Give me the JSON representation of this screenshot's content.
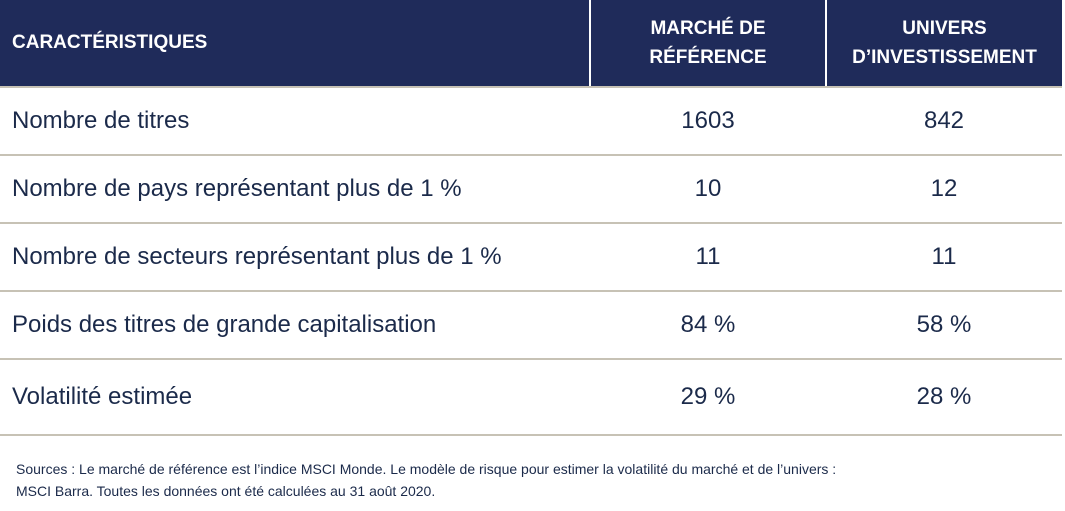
{
  "table": {
    "headers": {
      "col1": "CARACTÉRISTIQUES",
      "col2_line1": "MARCHÉ DE",
      "col2_line2": "RÉFÉRENCE",
      "col3_line1": "UNIVERS",
      "col3_line2": "D’INVESTISSEMENT"
    },
    "rows": [
      {
        "label": "Nombre de titres",
        "reference": "1603",
        "univers": "842"
      },
      {
        "label": "Nombre de pays représentant plus de 1 %",
        "reference": "10",
        "univers": "12"
      },
      {
        "label": "Nombre de secteurs représentant plus de 1 %",
        "reference": "11",
        "univers": "11"
      },
      {
        "label": "Poids des titres de grande capitalisation",
        "reference": "84 %",
        "univers": "58 %"
      },
      {
        "label": "Volatilité estimée",
        "reference": "29 %",
        "univers": "28 %"
      }
    ]
  },
  "footnote": {
    "line1": "Sources : Le marché de référence est l’indice MSCI Monde. Le modèle de risque pour estimer la volatilité du marché et de l’univers :",
    "line2": "MSCI Barra. Toutes les données ont été calculées au 31 août 2020."
  },
  "colors": {
    "header_bg": "#1f2b5a",
    "text": "#1b2a4a",
    "rule": "#c7c2b5"
  }
}
